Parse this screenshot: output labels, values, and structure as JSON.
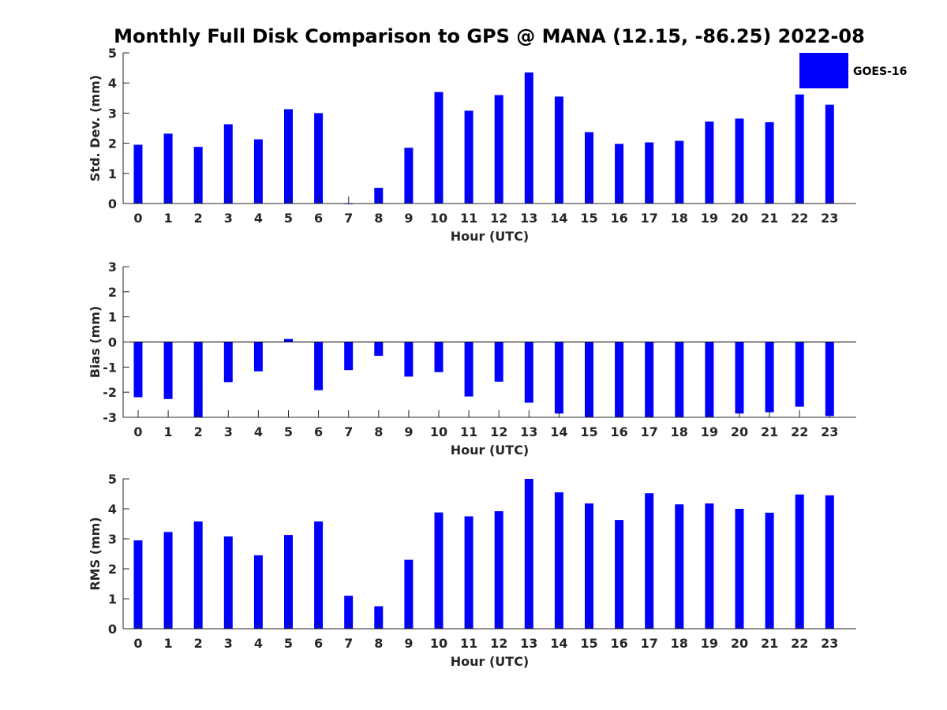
{
  "title": "Monthly Full Disk Comparison to GPS @ MANA (12.15, -86.25) 2022-08",
  "legend": {
    "label": "GOES-16",
    "color": "#0000ff"
  },
  "chart_data": [
    {
      "type": "bar",
      "name": "std-dev",
      "series_name": "GOES-16",
      "color": "#0000ff",
      "xlabel": "Hour (UTC)",
      "ylabel": "Std. Dev. (mm)",
      "ylim": [
        0,
        5
      ],
      "yticks": [
        0,
        1,
        2,
        3,
        4,
        5
      ],
      "categories": [
        "0",
        "1",
        "2",
        "3",
        "4",
        "5",
        "6",
        "7",
        "8",
        "9",
        "10",
        "11",
        "12",
        "13",
        "14",
        "15",
        "16",
        "17",
        "18",
        "19",
        "20",
        "21",
        "22",
        "23"
      ],
      "values": [
        1.95,
        2.32,
        1.88,
        2.63,
        2.13,
        3.13,
        3.0,
        0.0,
        0.52,
        1.85,
        3.7,
        3.08,
        3.6,
        4.35,
        3.55,
        2.37,
        1.98,
        2.03,
        2.08,
        2.72,
        2.82,
        2.7,
        3.62,
        3.28
      ]
    },
    {
      "type": "bar",
      "name": "bias",
      "series_name": "GOES-16",
      "color": "#0000ff",
      "xlabel": "Hour (UTC)",
      "ylabel": "Bias (mm)",
      "ylim": [
        -3,
        3
      ],
      "yticks": [
        -3,
        -2,
        -1,
        0,
        1,
        2,
        3
      ],
      "zero_line": true,
      "categories": [
        "0",
        "1",
        "2",
        "3",
        "4",
        "5",
        "6",
        "7",
        "8",
        "9",
        "10",
        "11",
        "12",
        "13",
        "14",
        "15",
        "16",
        "17",
        "18",
        "19",
        "20",
        "21",
        "22",
        "23"
      ],
      "values": [
        -2.2,
        -2.27,
        -3.0,
        -1.6,
        -1.17,
        0.12,
        -1.92,
        -1.12,
        -0.55,
        -1.38,
        -1.2,
        -2.17,
        -1.58,
        -2.42,
        -2.85,
        -3.0,
        -3.0,
        -3.0,
        -3.0,
        -3.0,
        -2.85,
        -2.8,
        -2.58,
        -2.95
      ]
    },
    {
      "type": "bar",
      "name": "rms",
      "series_name": "GOES-16",
      "color": "#0000ff",
      "xlabel": "Hour (UTC)",
      "ylabel": "RMS (mm)",
      "ylim": [
        0,
        5
      ],
      "yticks": [
        0,
        1,
        2,
        3,
        4,
        5
      ],
      "categories": [
        "0",
        "1",
        "2",
        "3",
        "4",
        "5",
        "6",
        "7",
        "8",
        "9",
        "10",
        "11",
        "12",
        "13",
        "14",
        "15",
        "16",
        "17",
        "18",
        "19",
        "20",
        "21",
        "22",
        "23"
      ],
      "values": [
        2.95,
        3.23,
        3.58,
        3.08,
        2.45,
        3.13,
        3.58,
        1.1,
        0.75,
        2.3,
        3.88,
        3.75,
        3.92,
        5.0,
        4.55,
        4.18,
        3.63,
        4.52,
        4.15,
        4.18,
        4.0,
        3.87,
        4.48,
        4.45
      ]
    }
  ]
}
